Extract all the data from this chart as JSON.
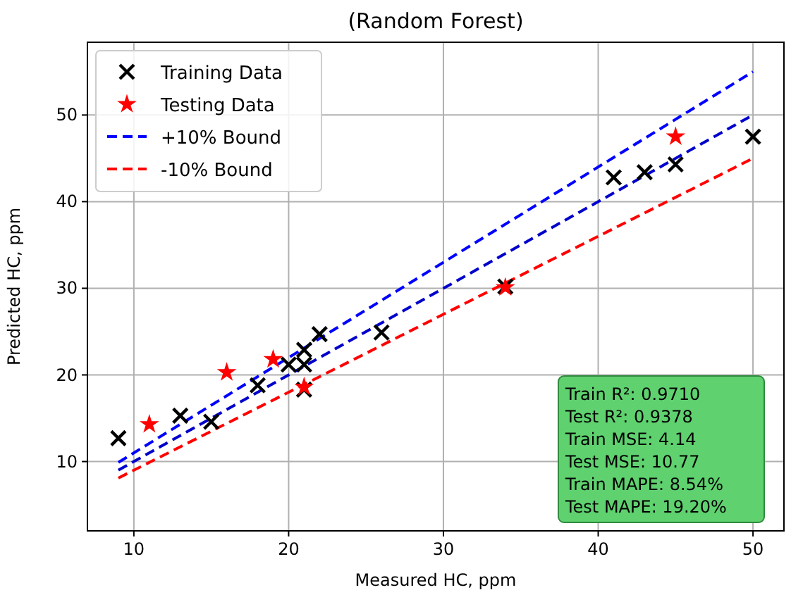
{
  "chart_data": {
    "type": "scatter",
    "title": "(Random Forest)",
    "xlabel": "Measured HC, ppm",
    "ylabel": "Predicted HC, ppm",
    "xlim": [
      7,
      52
    ],
    "ylim": [
      2,
      58.4
    ],
    "xticks": [
      10,
      20,
      30,
      40,
      50
    ],
    "yticks": [
      10,
      20,
      30,
      40,
      50
    ],
    "grid": true,
    "legend": "top left",
    "series": [
      {
        "name": "Training Data",
        "marker": "cross",
        "color": "#000000",
        "x": [
          9,
          13,
          15,
          18,
          20,
          21,
          21,
          21,
          22,
          26,
          34,
          41,
          43,
          45,
          50
        ],
        "values": [
          12.7,
          15.3,
          14.6,
          18.8,
          21.2,
          22.9,
          21.2,
          18.3,
          24.7,
          24.9,
          30.2,
          42.8,
          43.4,
          44.3,
          47.5
        ]
      },
      {
        "name": "Testing Data",
        "marker": "star",
        "color": "#ff0000",
        "x": [
          11,
          16,
          19,
          21,
          34,
          45
        ],
        "values": [
          14.3,
          20.3,
          21.8,
          18.6,
          30.1,
          47.5
        ]
      },
      {
        "name": "+10% Bound",
        "type": "line",
        "line_style": "dashed",
        "color": "#0000ff",
        "x": [
          9,
          50
        ],
        "values": [
          9.9,
          55
        ]
      },
      {
        "name": "-10% Bound",
        "type": "line",
        "line_style": "dashed",
        "color": "#ff0000",
        "x": [
          9,
          50
        ],
        "values": [
          8.1,
          45
        ]
      },
      {
        "type": "line",
        "line_style": "dashed",
        "color": "#0000cc",
        "x": [
          9,
          50
        ],
        "values": [
          9,
          50
        ]
      }
    ],
    "annotations": [
      "Train R²: 0.9710",
      "Test R²: 0.9378",
      "Train MSE: 4.14",
      "Test MSE: 10.77",
      "Train MAPE: 8.54%",
      "Test MAPE: 19.20%"
    ]
  }
}
